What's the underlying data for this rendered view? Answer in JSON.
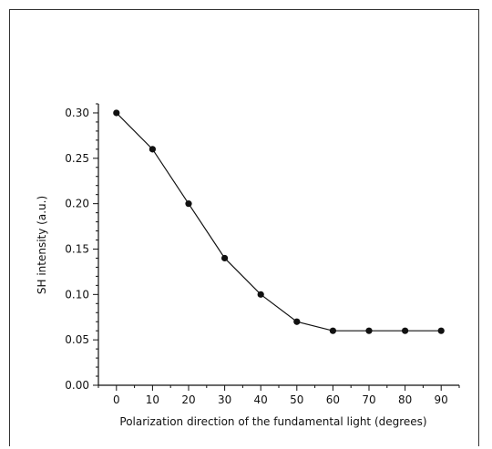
{
  "chart_data": {
    "type": "line",
    "title": "",
    "xlabel": "Polarization direction of the fundamental light (degrees)",
    "ylabel": "SH intensity (a.u.)",
    "xlim": [
      -5,
      95
    ],
    "ylim": [
      0,
      0.31
    ],
    "x_ticks": [
      "0",
      "10",
      "20",
      "30",
      "40",
      "50",
      "60",
      "70",
      "80",
      "90"
    ],
    "y_ticks": [
      "0.00",
      "0.05",
      "0.10",
      "0.15",
      "0.20",
      "0.25",
      "0.30"
    ],
    "grid": false,
    "legend": "none",
    "series": [
      {
        "x": [
          0,
          10,
          20,
          30,
          40,
          50,
          60,
          70,
          80,
          90
        ],
        "values": [
          0.3,
          0.26,
          0.2,
          0.14,
          0.1,
          0.07,
          0.06,
          0.06,
          0.06,
          0.06
        ],
        "color": "#111111",
        "marker": "circle"
      }
    ]
  }
}
